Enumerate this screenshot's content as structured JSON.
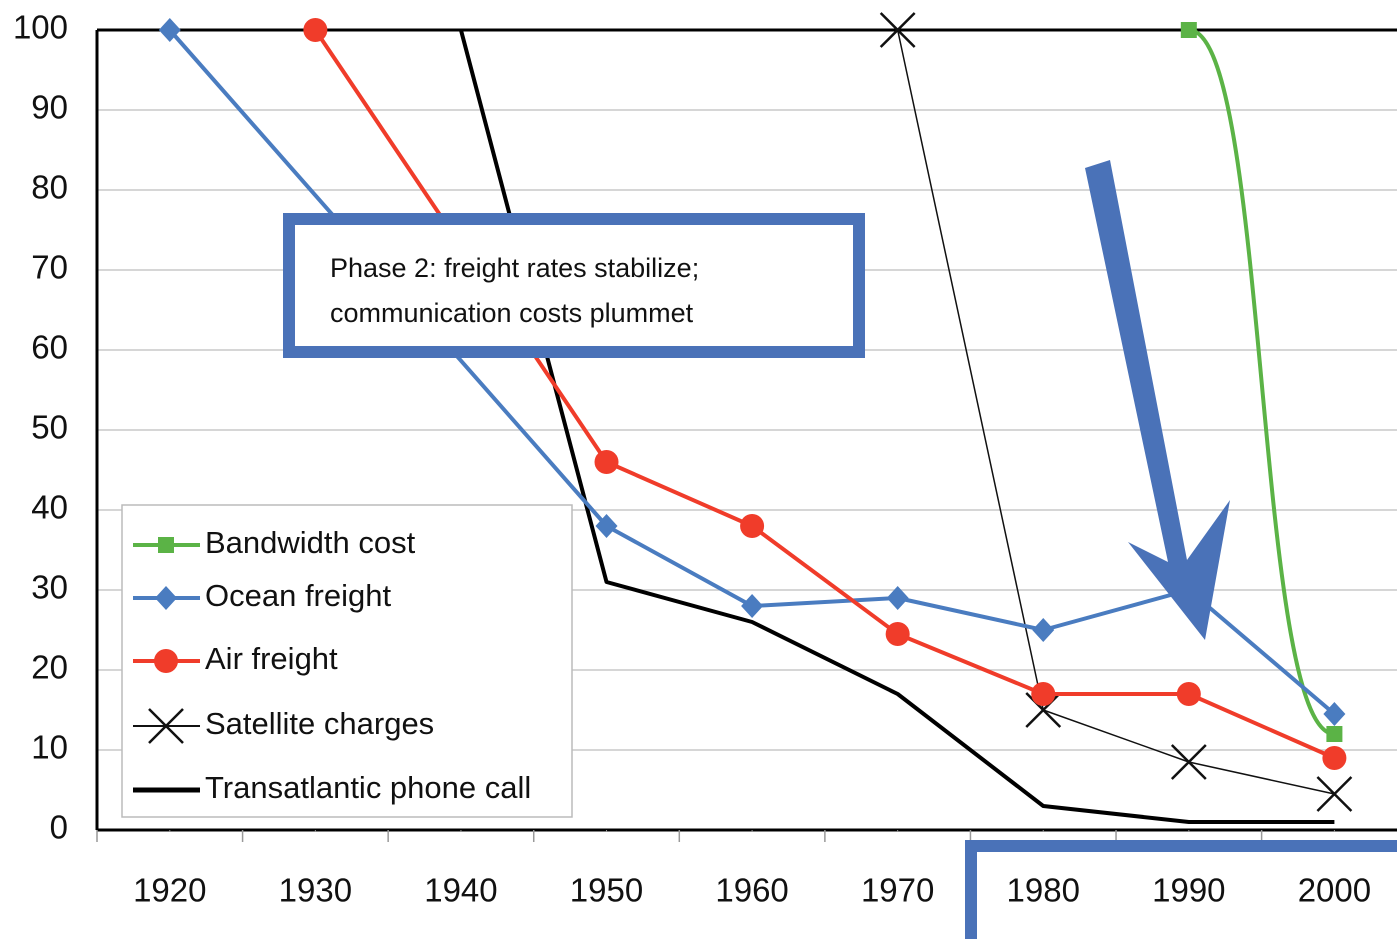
{
  "chart_data": {
    "type": "line",
    "annotation": [
      "Phase 2: freight rates stabilize;",
      "communication costs plummet"
    ],
    "xlim": [
      1915,
      2004.3
    ],
    "ylim": [
      0,
      100
    ],
    "xticks": [
      1920,
      1930,
      1940,
      1950,
      1960,
      1970,
      1980,
      1990,
      2000
    ],
    "yticks": [
      0,
      10,
      20,
      30,
      40,
      50,
      60,
      70,
      80,
      90,
      100
    ],
    "grid": true,
    "series": [
      {
        "name": "Bandwidth cost",
        "color": "#5bb346",
        "marker": "square",
        "smooth": true,
        "x": [
          1990,
          2000
        ],
        "values": [
          100,
          12
        ]
      },
      {
        "name": "Ocean freight",
        "color": "#4a7cc0",
        "marker": "diamond",
        "x": [
          1920,
          1950,
          1960,
          1970,
          1980,
          1990,
          2000
        ],
        "values": [
          100,
          38,
          28,
          29,
          25,
          30,
          14.5
        ]
      },
      {
        "name": "Air freight",
        "color": "#f03c2a",
        "marker": "circle",
        "x": [
          1930,
          1950,
          1960,
          1970,
          1980,
          1990,
          2000
        ],
        "values": [
          100,
          46,
          38,
          24.5,
          17,
          17,
          9
        ]
      },
      {
        "name": "Satellite charges",
        "color": "#111111",
        "marker": "x",
        "thin": true,
        "x": [
          1970,
          1980,
          1990,
          2000
        ],
        "values": [
          100,
          15,
          8.5,
          4.5
        ]
      },
      {
        "name": "Transatlantic phone call",
        "color": "#000000",
        "marker": "none",
        "x": [
          1940,
          1950,
          1960,
          1970,
          1980,
          1990,
          2000
        ],
        "values": [
          100,
          31,
          26,
          17,
          3,
          1,
          1
        ]
      }
    ]
  }
}
